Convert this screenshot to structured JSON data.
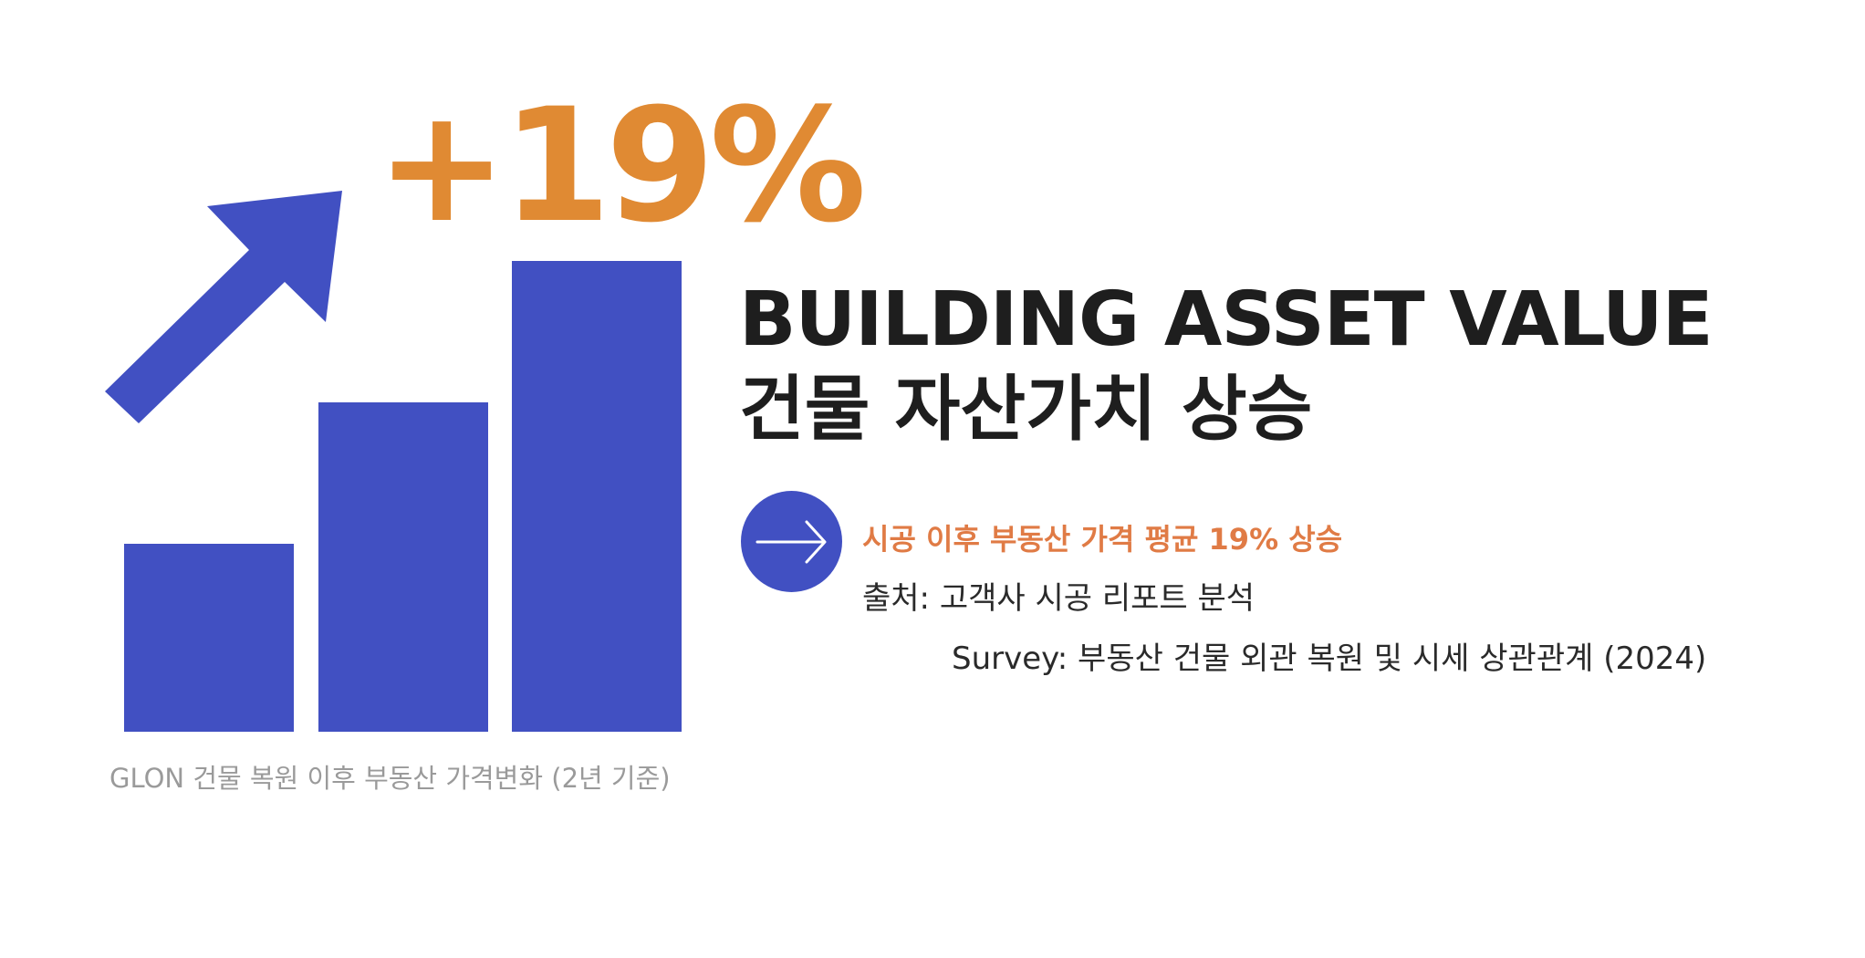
{
  "colors": {
    "bar_blue": "#4150c2",
    "accent_orange": "#e08a33",
    "highlight_orange": "#e07b45",
    "title_dark": "#1e1e1e",
    "caption_gray": "#9a9a9a"
  },
  "headline": {
    "value": "+19%"
  },
  "graphic": {
    "icons": [
      "trend-up-arrow-icon",
      "bar-chart-icon"
    ]
  },
  "caption": "GLON 건물 복원 이후 부동산 가격변화 (2년 기준)",
  "title": {
    "english": "BUILDING ASSET VALUE",
    "korean": "건물 자산가치 상승"
  },
  "info": {
    "icon": "arrow-right-circle-icon",
    "highlight": "시공 이후 부동산 가격 평균 19% 상승",
    "source": "출처:  고객사 시공 리포트 분석",
    "survey": "Survey: 부동산 건물 외관 복원 및 시세 상관관계 (2024)"
  }
}
